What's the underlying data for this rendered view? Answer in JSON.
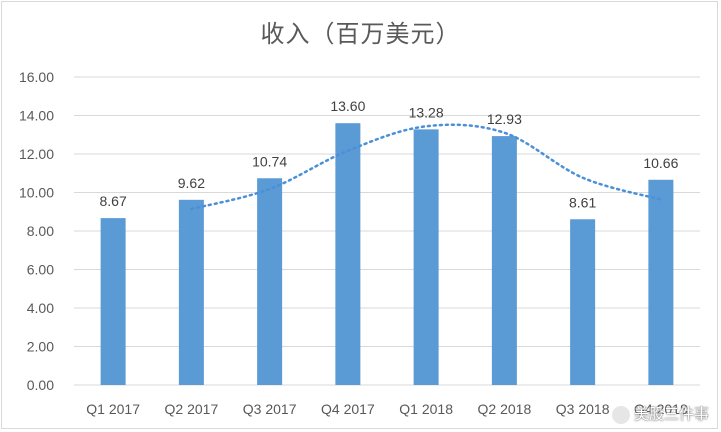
{
  "chart_data": {
    "type": "bar",
    "title": "收入（百万美元）",
    "categories": [
      "Q1 2017",
      "Q2 2017",
      "Q3 2017",
      "Q4 2017",
      "Q1 2018",
      "Q2 2018",
      "Q3 2018",
      "Q4 2018"
    ],
    "values": [
      8.67,
      9.62,
      10.74,
      13.6,
      13.28,
      12.93,
      8.61,
      10.66
    ],
    "data_labels": [
      "8.67",
      "9.62",
      "10.74",
      "13.60",
      "13.28",
      "12.93",
      "8.61",
      "10.66"
    ],
    "ylim": [
      0,
      16
    ],
    "yticks": [
      "0.00",
      "2.00",
      "4.00",
      "6.00",
      "8.00",
      "10.00",
      "12.00",
      "14.00",
      "16.00"
    ],
    "trendline": {
      "type": "moving-average",
      "period": 2,
      "style": "dotted"
    },
    "grid": true,
    "bar_color": "#5b9bd5",
    "trend_color": "#4a90d9",
    "grid_color": "#d9d9d9"
  },
  "watermark": "美股三件事"
}
